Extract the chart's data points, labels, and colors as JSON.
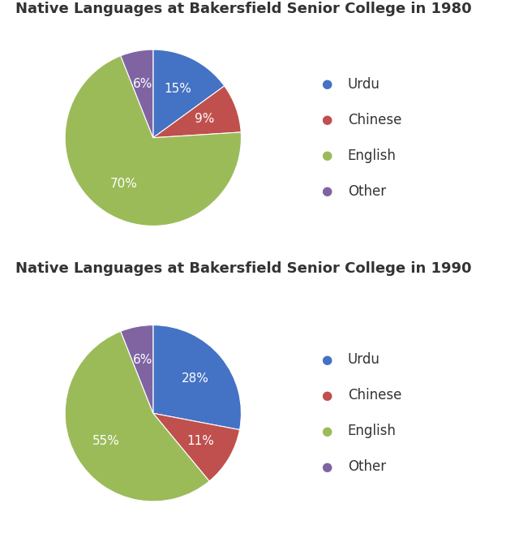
{
  "charts": [
    {
      "title": "Native Languages at Bakersfield Senior College in 1980",
      "labels": [
        "Urdu",
        "Chinese",
        "English",
        "Other"
      ],
      "values": [
        15,
        9,
        70,
        6
      ],
      "colors": [
        "#4472C4",
        "#C0504D",
        "#9BBB59",
        "#8064A2"
      ],
      "pct_labels": [
        "15%",
        "9%",
        "70%",
        "6%"
      ]
    },
    {
      "title": "Native Languages at Bakersfield Senior College in 1990",
      "labels": [
        "Urdu",
        "Chinese",
        "English",
        "Other"
      ],
      "values": [
        28,
        11,
        55,
        6
      ],
      "colors": [
        "#4472C4",
        "#C0504D",
        "#9BBB59",
        "#8064A2"
      ],
      "pct_labels": [
        "28%",
        "11%",
        "55%",
        "6%"
      ]
    }
  ],
  "legend_labels": [
    "Urdu",
    "Chinese",
    "English",
    "Other"
  ],
  "legend_colors": [
    "#4472C4",
    "#C0504D",
    "#9BBB59",
    "#8064A2"
  ],
  "bg_color": "#FFFFFF",
  "text_color": "#333333",
  "label_color": "#FFFFFF",
  "title_fontsize": 13,
  "legend_fontsize": 12,
  "pct_fontsize": 11
}
